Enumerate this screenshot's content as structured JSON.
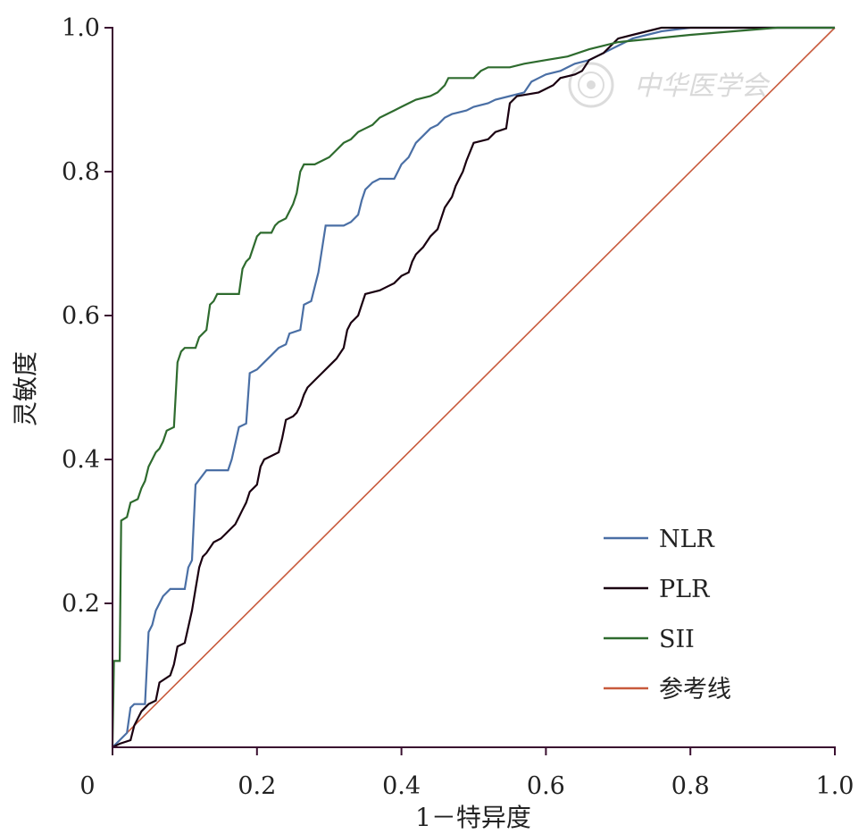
{
  "watermark": "中华医学会",
  "chart_data": {
    "type": "line",
    "title": "",
    "xlabel": "1－特异度",
    "ylabel": "灵敏度",
    "xlim": [
      0,
      1
    ],
    "ylim": [
      0,
      1
    ],
    "x_ticks": [
      {
        "value": 0,
        "label": "0"
      },
      {
        "value": 0.2,
        "label": "0.2"
      },
      {
        "value": 0.4,
        "label": "0.4"
      },
      {
        "value": 0.6,
        "label": "0.6"
      },
      {
        "value": 0.8,
        "label": "0.8"
      },
      {
        "value": 1.0,
        "label": "1.0"
      }
    ],
    "y_ticks": [
      {
        "value": 0.2,
        "label": "0.2"
      },
      {
        "value": 0.4,
        "label": "0.4"
      },
      {
        "value": 0.6,
        "label": "0.6"
      },
      {
        "value": 0.8,
        "label": "0.8"
      },
      {
        "value": 1.0,
        "label": "1.0"
      }
    ],
    "grid": false,
    "legend_position": "bottom-right",
    "series": [
      {
        "name": "NLR",
        "color": "#4a6fa5",
        "points": [
          [
            0,
            0
          ],
          [
            0.01,
            0.01
          ],
          [
            0.02,
            0.02
          ],
          [
            0.025,
            0.055
          ],
          [
            0.03,
            0.06
          ],
          [
            0.045,
            0.06
          ],
          [
            0.05,
            0.16
          ],
          [
            0.055,
            0.17
          ],
          [
            0.06,
            0.19
          ],
          [
            0.065,
            0.2
          ],
          [
            0.07,
            0.21
          ],
          [
            0.08,
            0.22
          ],
          [
            0.1,
            0.22
          ],
          [
            0.105,
            0.25
          ],
          [
            0.11,
            0.26
          ],
          [
            0.115,
            0.365
          ],
          [
            0.13,
            0.385
          ],
          [
            0.16,
            0.385
          ],
          [
            0.165,
            0.4
          ],
          [
            0.175,
            0.445
          ],
          [
            0.185,
            0.45
          ],
          [
            0.19,
            0.52
          ],
          [
            0.2,
            0.525
          ],
          [
            0.21,
            0.535
          ],
          [
            0.22,
            0.545
          ],
          [
            0.23,
            0.555
          ],
          [
            0.24,
            0.56
          ],
          [
            0.245,
            0.575
          ],
          [
            0.26,
            0.58
          ],
          [
            0.265,
            0.615
          ],
          [
            0.275,
            0.62
          ],
          [
            0.28,
            0.64
          ],
          [
            0.285,
            0.66
          ],
          [
            0.295,
            0.725
          ],
          [
            0.32,
            0.725
          ],
          [
            0.33,
            0.73
          ],
          [
            0.34,
            0.74
          ],
          [
            0.345,
            0.76
          ],
          [
            0.35,
            0.775
          ],
          [
            0.36,
            0.785
          ],
          [
            0.37,
            0.79
          ],
          [
            0.39,
            0.79
          ],
          [
            0.395,
            0.8
          ],
          [
            0.4,
            0.81
          ],
          [
            0.41,
            0.82
          ],
          [
            0.42,
            0.84
          ],
          [
            0.43,
            0.85
          ],
          [
            0.44,
            0.86
          ],
          [
            0.45,
            0.865
          ],
          [
            0.46,
            0.875
          ],
          [
            0.47,
            0.88
          ],
          [
            0.49,
            0.885
          ],
          [
            0.5,
            0.89
          ],
          [
            0.52,
            0.895
          ],
          [
            0.53,
            0.9
          ],
          [
            0.55,
            0.905
          ],
          [
            0.57,
            0.91
          ],
          [
            0.58,
            0.925
          ],
          [
            0.59,
            0.93
          ],
          [
            0.6,
            0.935
          ],
          [
            0.62,
            0.94
          ],
          [
            0.64,
            0.95
          ],
          [
            0.66,
            0.955
          ],
          [
            0.68,
            0.965
          ],
          [
            0.7,
            0.975
          ],
          [
            0.72,
            0.985
          ],
          [
            0.74,
            0.99
          ],
          [
            0.76,
            0.995
          ],
          [
            0.8,
            1.0
          ],
          [
            1.0,
            1.0
          ]
        ]
      },
      {
        "name": "PLR",
        "color": "#1a0010",
        "points": [
          [
            0,
            0
          ],
          [
            0.01,
            0.005
          ],
          [
            0.025,
            0.01
          ],
          [
            0.03,
            0.03
          ],
          [
            0.04,
            0.05
          ],
          [
            0.05,
            0.06
          ],
          [
            0.06,
            0.065
          ],
          [
            0.065,
            0.09
          ],
          [
            0.08,
            0.1
          ],
          [
            0.085,
            0.115
          ],
          [
            0.09,
            0.14
          ],
          [
            0.1,
            0.145
          ],
          [
            0.11,
            0.19
          ],
          [
            0.115,
            0.22
          ],
          [
            0.12,
            0.25
          ],
          [
            0.125,
            0.265
          ],
          [
            0.13,
            0.27
          ],
          [
            0.14,
            0.285
          ],
          [
            0.15,
            0.29
          ],
          [
            0.155,
            0.295
          ],
          [
            0.16,
            0.3
          ],
          [
            0.17,
            0.31
          ],
          [
            0.175,
            0.32
          ],
          [
            0.18,
            0.33
          ],
          [
            0.185,
            0.34
          ],
          [
            0.19,
            0.355
          ],
          [
            0.2,
            0.365
          ],
          [
            0.205,
            0.39
          ],
          [
            0.21,
            0.4
          ],
          [
            0.22,
            0.405
          ],
          [
            0.23,
            0.41
          ],
          [
            0.235,
            0.43
          ],
          [
            0.24,
            0.455
          ],
          [
            0.25,
            0.46
          ],
          [
            0.255,
            0.465
          ],
          [
            0.26,
            0.475
          ],
          [
            0.265,
            0.49
          ],
          [
            0.27,
            0.5
          ],
          [
            0.28,
            0.51
          ],
          [
            0.29,
            0.52
          ],
          [
            0.3,
            0.53
          ],
          [
            0.31,
            0.54
          ],
          [
            0.32,
            0.555
          ],
          [
            0.325,
            0.58
          ],
          [
            0.33,
            0.59
          ],
          [
            0.34,
            0.6
          ],
          [
            0.345,
            0.615
          ],
          [
            0.35,
            0.63
          ],
          [
            0.37,
            0.635
          ],
          [
            0.38,
            0.64
          ],
          [
            0.39,
            0.645
          ],
          [
            0.4,
            0.655
          ],
          [
            0.41,
            0.66
          ],
          [
            0.415,
            0.675
          ],
          [
            0.42,
            0.685
          ],
          [
            0.43,
            0.695
          ],
          [
            0.44,
            0.71
          ],
          [
            0.45,
            0.72
          ],
          [
            0.455,
            0.735
          ],
          [
            0.46,
            0.75
          ],
          [
            0.47,
            0.765
          ],
          [
            0.475,
            0.78
          ],
          [
            0.48,
            0.79
          ],
          [
            0.485,
            0.8
          ],
          [
            0.49,
            0.815
          ],
          [
            0.5,
            0.84
          ],
          [
            0.52,
            0.845
          ],
          [
            0.53,
            0.855
          ],
          [
            0.545,
            0.86
          ],
          [
            0.55,
            0.895
          ],
          [
            0.56,
            0.905
          ],
          [
            0.59,
            0.91
          ],
          [
            0.6,
            0.915
          ],
          [
            0.61,
            0.92
          ],
          [
            0.62,
            0.93
          ],
          [
            0.64,
            0.935
          ],
          [
            0.65,
            0.94
          ],
          [
            0.66,
            0.955
          ],
          [
            0.67,
            0.96
          ],
          [
            0.68,
            0.965
          ],
          [
            0.69,
            0.975
          ],
          [
            0.7,
            0.985
          ],
          [
            0.72,
            0.99
          ],
          [
            0.74,
            0.995
          ],
          [
            0.76,
            1.0
          ],
          [
            1.0,
            1.0
          ]
        ]
      },
      {
        "name": "SII",
        "color": "#2e6b2e",
        "points": [
          [
            0,
            0
          ],
          [
            0.002,
            0.12
          ],
          [
            0.01,
            0.12
          ],
          [
            0.012,
            0.315
          ],
          [
            0.02,
            0.32
          ],
          [
            0.025,
            0.34
          ],
          [
            0.035,
            0.345
          ],
          [
            0.04,
            0.36
          ],
          [
            0.045,
            0.37
          ],
          [
            0.05,
            0.39
          ],
          [
            0.055,
            0.4
          ],
          [
            0.06,
            0.41
          ],
          [
            0.065,
            0.415
          ],
          [
            0.07,
            0.425
          ],
          [
            0.075,
            0.44
          ],
          [
            0.085,
            0.445
          ],
          [
            0.09,
            0.535
          ],
          [
            0.095,
            0.55
          ],
          [
            0.1,
            0.555
          ],
          [
            0.115,
            0.555
          ],
          [
            0.12,
            0.57
          ],
          [
            0.13,
            0.58
          ],
          [
            0.135,
            0.615
          ],
          [
            0.14,
            0.62
          ],
          [
            0.145,
            0.63
          ],
          [
            0.175,
            0.63
          ],
          [
            0.18,
            0.665
          ],
          [
            0.185,
            0.675
          ],
          [
            0.19,
            0.68
          ],
          [
            0.2,
            0.71
          ],
          [
            0.205,
            0.715
          ],
          [
            0.22,
            0.715
          ],
          [
            0.225,
            0.725
          ],
          [
            0.23,
            0.73
          ],
          [
            0.24,
            0.735
          ],
          [
            0.25,
            0.755
          ],
          [
            0.255,
            0.77
          ],
          [
            0.26,
            0.8
          ],
          [
            0.265,
            0.81
          ],
          [
            0.28,
            0.81
          ],
          [
            0.29,
            0.815
          ],
          [
            0.3,
            0.82
          ],
          [
            0.31,
            0.83
          ],
          [
            0.32,
            0.84
          ],
          [
            0.33,
            0.845
          ],
          [
            0.34,
            0.855
          ],
          [
            0.35,
            0.86
          ],
          [
            0.36,
            0.865
          ],
          [
            0.37,
            0.875
          ],
          [
            0.38,
            0.88
          ],
          [
            0.39,
            0.885
          ],
          [
            0.4,
            0.89
          ],
          [
            0.41,
            0.895
          ],
          [
            0.42,
            0.9
          ],
          [
            0.44,
            0.905
          ],
          [
            0.45,
            0.91
          ],
          [
            0.46,
            0.92
          ],
          [
            0.465,
            0.93
          ],
          [
            0.5,
            0.93
          ],
          [
            0.51,
            0.94
          ],
          [
            0.52,
            0.945
          ],
          [
            0.55,
            0.945
          ],
          [
            0.57,
            0.95
          ],
          [
            0.6,
            0.955
          ],
          [
            0.63,
            0.96
          ],
          [
            0.66,
            0.97
          ],
          [
            0.7,
            0.98
          ],
          [
            0.75,
            0.985
          ],
          [
            0.8,
            0.99
          ],
          [
            0.86,
            0.995
          ],
          [
            0.92,
            1.0
          ],
          [
            1.0,
            1.0
          ]
        ]
      },
      {
        "name": "参考线",
        "color": "#c85a3c",
        "points": [
          [
            0,
            0
          ],
          [
            1,
            1
          ]
        ]
      }
    ]
  }
}
